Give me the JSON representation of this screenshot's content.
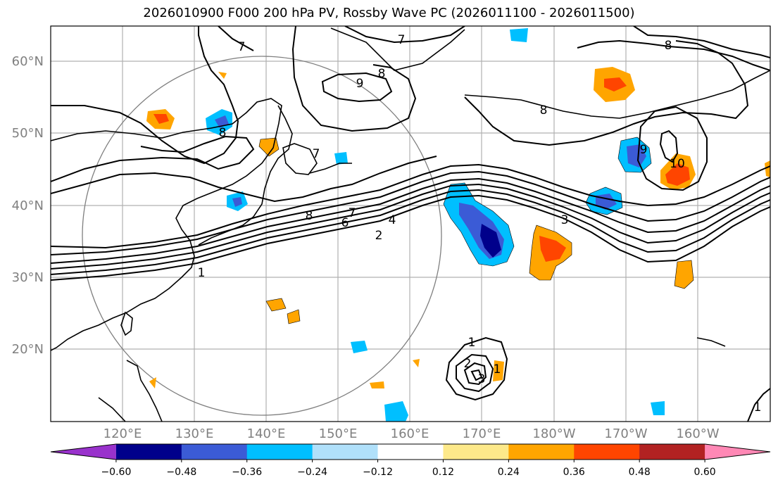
{
  "title": "2026010900 F000 200 hPa PV, Rossby Wave PC (2026011100 - 2026011500)",
  "map": {
    "lat_labels": [
      "20°N",
      "30°N",
      "40°N",
      "50°N",
      "60°N"
    ],
    "lon_labels": [
      "120°E",
      "130°E",
      "140°E",
      "150°E",
      "160°E",
      "170°E",
      "180°W",
      "170°W",
      "160°W"
    ],
    "contour_labels": [
      "7",
      "7",
      "8",
      "9",
      "8",
      "8",
      "7",
      "8",
      "8",
      "7",
      "6",
      "4",
      "2",
      "1",
      "3",
      "9",
      "10",
      "1",
      "2",
      "3",
      "1",
      "1"
    ]
  },
  "colorbar": {
    "ticks": [
      "−0.60",
      "−0.48",
      "−0.36",
      "−0.24",
      "−0.12",
      "0.12",
      "0.24",
      "0.36",
      "0.48",
      "0.60"
    ],
    "colors": [
      "#9932cc",
      "#00008b",
      "#3b5bd6",
      "#00bfff",
      "#b0e0fa",
      "#ffffff",
      "#fde98a",
      "#ffa500",
      "#ff4500",
      "#b22222",
      "#ff88b5"
    ]
  }
}
